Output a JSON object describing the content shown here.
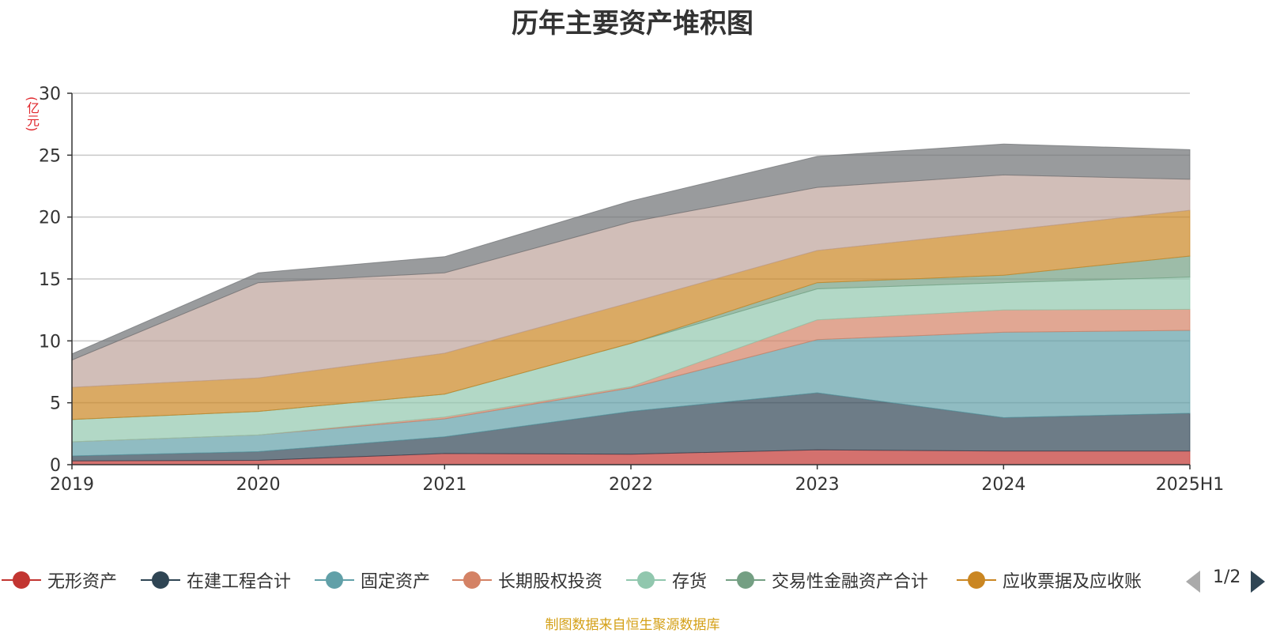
{
  "chart_data": {
    "type": "area",
    "stacked": true,
    "title": "历年主要资产堆积图",
    "ylabel": "(亿元)",
    "ylim": [
      0,
      30
    ],
    "yticks": [
      0,
      5,
      10,
      15,
      20,
      25,
      30
    ],
    "grid": true,
    "categories": [
      "2019",
      "2020",
      "2021",
      "2022",
      "2023",
      "2024",
      "2025H1"
    ],
    "series": [
      {
        "name": "无形资产",
        "color": "#c23531",
        "values": [
          0.3,
          0.35,
          0.9,
          0.85,
          1.2,
          1.1,
          1.1
        ]
      },
      {
        "name": "在建工程合计",
        "color": "#2f4554",
        "values": [
          0.4,
          0.7,
          1.35,
          3.45,
          4.6,
          2.7,
          3.05
        ]
      },
      {
        "name": "固定资产",
        "color": "#61a0a8",
        "values": [
          1.15,
          1.35,
          1.45,
          1.9,
          4.3,
          6.9,
          6.7
        ]
      },
      {
        "name": "长期股权投资",
        "color": "#d48265",
        "values": [
          0.0,
          0.0,
          0.15,
          0.1,
          1.6,
          1.8,
          1.7
        ]
      },
      {
        "name": "存货",
        "color": "#91c7ae",
        "values": [
          1.8,
          1.9,
          1.85,
          3.5,
          2.5,
          2.2,
          2.6
        ]
      },
      {
        "name": "交易性金融资产合计",
        "color": "#749f83",
        "values": [
          0.0,
          0.0,
          0.0,
          0.0,
          0.5,
          0.6,
          1.7
        ]
      },
      {
        "name": "应收票据及应收账",
        "color": "#ca8622",
        "values": [
          2.6,
          2.7,
          3.3,
          3.3,
          2.6,
          3.6,
          3.7
        ]
      },
      {
        "color": "#bda29a",
        "values": [
          2.2,
          7.7,
          6.5,
          6.5,
          5.1,
          4.5,
          2.5
        ]
      },
      {
        "color": "#6e7074",
        "values": [
          0.5,
          0.8,
          1.3,
          1.7,
          2.5,
          2.5,
          2.4
        ]
      }
    ]
  },
  "legend": {
    "page": "1/2"
  },
  "source": "制图数据来自恒生聚源数据库"
}
